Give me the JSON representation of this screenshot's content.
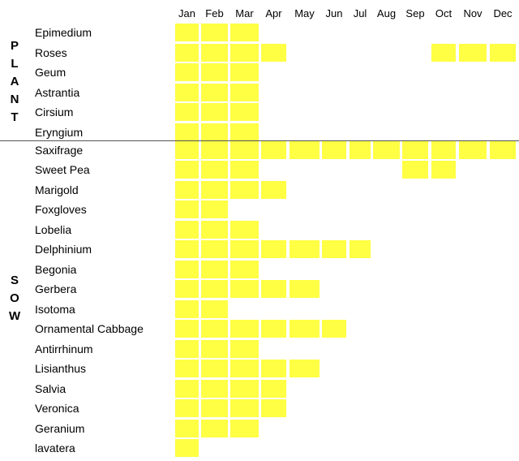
{
  "months": [
    "Jan",
    "Feb",
    "Mar",
    "Apr",
    "May",
    "Jun",
    "Jul",
    "Aug",
    "Sep",
    "Oct",
    "Nov",
    "Dec"
  ],
  "sections": [
    {
      "label": "PLANT",
      "rows": [
        {
          "name": "Epimedium",
          "months": [
            0,
            1,
            2
          ]
        },
        {
          "name": "Roses",
          "months": [
            0,
            1,
            2,
            3,
            9,
            10,
            11
          ]
        },
        {
          "name": "Geum",
          "months": [
            0,
            1,
            2
          ]
        },
        {
          "name": "Astrantia",
          "months": [
            0,
            1,
            2
          ]
        },
        {
          "name": "Cirsium",
          "months": [
            0,
            1,
            2
          ]
        },
        {
          "name": "Eryngium",
          "months": [
            0,
            1,
            2
          ]
        }
      ]
    },
    {
      "label": "SOW",
      "rows": [
        {
          "name": "Saxifrage",
          "months": [
            0,
            1,
            2,
            3,
            4,
            5,
            6,
            7,
            8,
            9,
            10,
            11
          ]
        },
        {
          "name": "Sweet Pea",
          "months": [
            0,
            1,
            2,
            8,
            9
          ]
        },
        {
          "name": "Marigold",
          "months": [
            0,
            1,
            2,
            3
          ]
        },
        {
          "name": "Foxgloves",
          "months": [
            0,
            1
          ]
        },
        {
          "name": "Lobelia",
          "months": [
            0,
            1,
            2
          ]
        },
        {
          "name": "Delphinium",
          "months": [
            0,
            1,
            2,
            3,
            4,
            5,
            6
          ]
        },
        {
          "name": "Begonia",
          "months": [
            0,
            1,
            2
          ]
        },
        {
          "name": "Gerbera",
          "months": [
            0,
            1,
            2,
            3,
            4
          ]
        },
        {
          "name": "Isotoma",
          "months": [
            0,
            1
          ]
        },
        {
          "name": "Ornamental Cabbage",
          "months": [
            0,
            1,
            2,
            3,
            4,
            5
          ]
        },
        {
          "name": "Antirrhinum",
          "months": [
            0,
            1,
            2
          ]
        },
        {
          "name": "Lisianthus",
          "months": [
            0,
            1,
            2,
            3,
            4
          ]
        },
        {
          "name": "Salvia",
          "months": [
            0,
            1,
            2,
            3
          ]
        },
        {
          "name": "Veronica",
          "months": [
            0,
            1,
            2,
            3
          ]
        },
        {
          "name": "Geranium",
          "months": [
            0,
            1,
            2
          ]
        },
        {
          "name": "lavatera",
          "months": [
            0
          ]
        }
      ]
    }
  ]
}
